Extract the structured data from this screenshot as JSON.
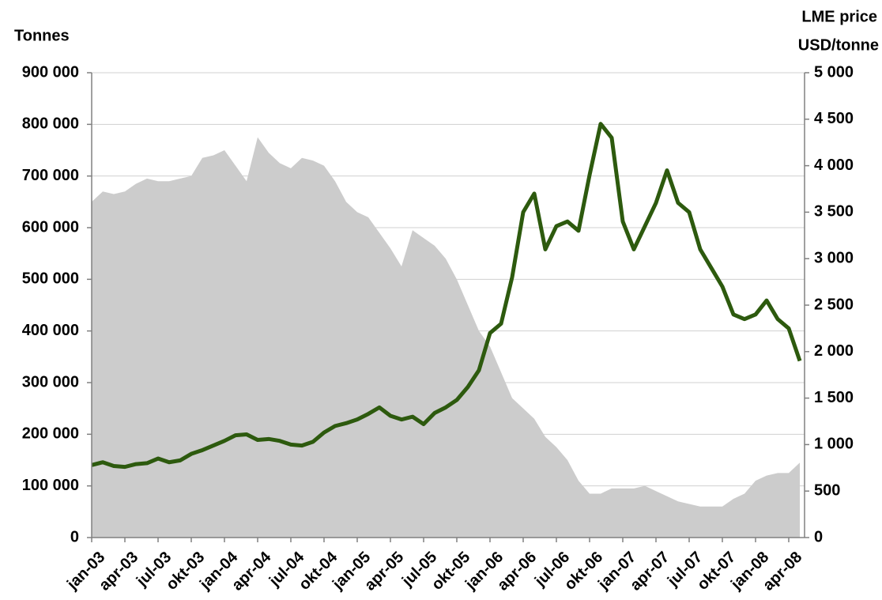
{
  "chart_data": {
    "type": "area_line",
    "ylabel": "Tonnes",
    "y2label": [
      "LME price",
      "USD/tonne"
    ],
    "categories": [
      "jan-03",
      null,
      null,
      "apr-03",
      null,
      null,
      "jul-03",
      null,
      null,
      "okt-03",
      null,
      null,
      "jan-04",
      null,
      null,
      "apr-04",
      null,
      null,
      "jul-04",
      null,
      null,
      "okt-04",
      null,
      null,
      "jan-05",
      null,
      null,
      "apr-05",
      null,
      null,
      "jul-05",
      null,
      null,
      "okt-05",
      null,
      null,
      "jan-06",
      null,
      null,
      "apr-06",
      null,
      null,
      "jul-06",
      null,
      null,
      "okt-06",
      null,
      null,
      "jan-07",
      null,
      null,
      "apr-07",
      null,
      null,
      "jul-07",
      null,
      null,
      "okt-07",
      null,
      null,
      "jan-08",
      null,
      null,
      "apr-08",
      null
    ],
    "series": [
      {
        "color": "#cccccc",
        "kind": "area",
        "axis": "y",
        "values": [
          650000,
          670000,
          665000,
          670000,
          685000,
          695000,
          690000,
          690000,
          695000,
          700000,
          735000,
          740000,
          750000,
          720000,
          690000,
          775000,
          745000,
          725000,
          715000,
          735000,
          730000,
          720000,
          690000,
          650000,
          630000,
          620000,
          590000,
          560000,
          525000,
          595000,
          580000,
          565000,
          540000,
          500000,
          450000,
          400000,
          370000,
          320000,
          270000,
          250000,
          230000,
          195000,
          175000,
          150000,
          110000,
          85000,
          85000,
          95000,
          95000,
          95000,
          100000,
          90000,
          80000,
          70000,
          65000,
          60000,
          60000,
          60000,
          75000,
          85000,
          110000,
          120000,
          125000,
          125000,
          145000
        ]
      },
      {
        "color": "#2d5a0e",
        "kind": "line",
        "axis": "y2",
        "values": [
          780,
          810,
          770,
          760,
          790,
          800,
          850,
          810,
          830,
          900,
          940,
          990,
          1040,
          1100,
          1110,
          1050,
          1060,
          1040,
          1000,
          990,
          1030,
          1130,
          1200,
          1230,
          1270,
          1330,
          1400,
          1310,
          1270,
          1300,
          1220,
          1340,
          1400,
          1480,
          1620,
          1800,
          2200,
          2300,
          2800,
          3500,
          3700,
          3100,
          3350,
          3400,
          3300,
          3900,
          4450,
          4300,
          3400,
          3100,
          3350,
          3600,
          3950,
          3600,
          3500,
          3100,
          2900,
          2700,
          2400,
          2350,
          2400,
          2550,
          2350,
          2250,
          1900
        ]
      }
    ],
    "ylim": [
      0,
      900000
    ],
    "yticks": [
      0,
      {
        "value": 100000,
        "label": "100 000"
      },
      {
        "value": 200000,
        "label": "200 000"
      },
      {
        "value": 300000,
        "label": "300 000"
      },
      {
        "value": 400000,
        "label": "400 000"
      },
      {
        "value": 500000,
        "label": "500 000"
      },
      {
        "value": 600000,
        "label": "600 000"
      },
      {
        "value": 700000,
        "label": "700 000"
      },
      {
        "value": 800000,
        "label": "800 000"
      },
      {
        "value": 900000,
        "label": "900 000"
      }
    ],
    "y2lim": [
      0,
      5000
    ],
    "y2ticks": [
      0,
      500,
      {
        "value": 1000,
        "label": "1 000"
      },
      {
        "value": 1500,
        "label": "1 500"
      },
      {
        "value": 2000,
        "label": "2 000"
      },
      {
        "value": 2500,
        "label": "2 500"
      },
      {
        "value": 3000,
        "label": "3 000"
      },
      {
        "value": 3500,
        "label": "3 500"
      },
      {
        "value": 4000,
        "label": "4 000"
      },
      {
        "value": 4500,
        "label": "4 500"
      },
      {
        "value": 5000,
        "label": "5 000"
      }
    ],
    "grid": true
  }
}
